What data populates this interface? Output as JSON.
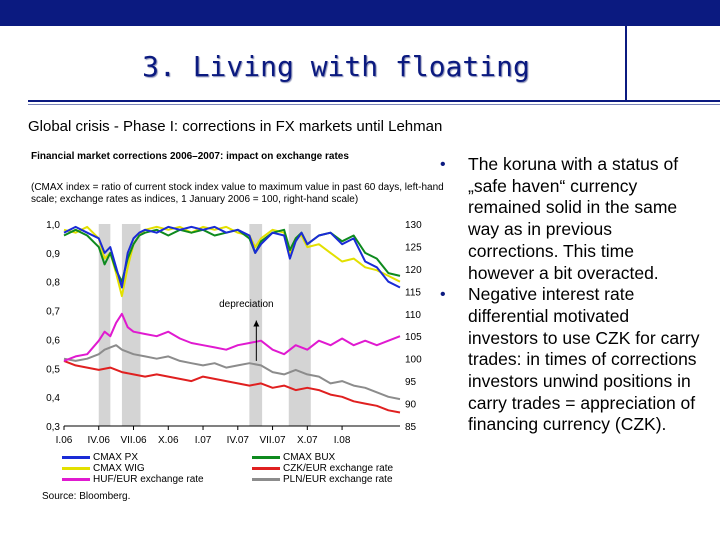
{
  "header": {
    "title": "3. Living with floating"
  },
  "subtitle": "Global crisis - Phase I: corrections in FX markets until Lehman",
  "bullets": [
    "The koruna with a status of „safe haven“ currency remained solid in the same way as in previous corrections. This time however a bit overacted.",
    "Negative interest rate differential motivated investors to use CZK for carry trades: in times of corrections investors unwind positions in carry trades = appreciation of financing currency (CZK)."
  ],
  "chart_data": {
    "type": "line",
    "title": "Financial market corrections 2006–2007: impact on exchange rates",
    "note": "(CMAX index = ratio of current stock index value to maximum value in past 60 days, left-hand scale; exchange rates as indices, 1 January 2006 = 100, right-hand scale)",
    "source": "Source: Bloomberg.",
    "annotation": "depreciation",
    "x_ticks": [
      "I.06",
      "IV.06",
      "VII.06",
      "X.06",
      "I.07",
      "IV.07",
      "VII.07",
      "X.07",
      "I.08"
    ],
    "x_range_months": [
      0,
      29
    ],
    "ylim_left": [
      0.3,
      1.0
    ],
    "yticks_left": [
      "0,3",
      "0,4",
      "0,5",
      "0,6",
      "0,7",
      "0,8",
      "0,9",
      "1,0"
    ],
    "ylim_right": [
      85,
      130
    ],
    "yticks_right": [
      "85",
      "90",
      "95",
      "100",
      "105",
      "110",
      "115",
      "120",
      "125",
      "130"
    ],
    "shaded_periods": [
      [
        3.0,
        4.0
      ],
      [
        5.0,
        6.6
      ],
      [
        16.0,
        17.1
      ],
      [
        19.4,
        21.3
      ]
    ],
    "series": [
      {
        "name": "CMAX PX",
        "axis": "left",
        "color": "#1a2bd6",
        "x": [
          0,
          1,
          2,
          3,
          3.5,
          4,
          4.5,
          5,
          5.5,
          6,
          6.5,
          7,
          8,
          9,
          10,
          11,
          12,
          13,
          14,
          15,
          16,
          16.5,
          17,
          18,
          19,
          19.5,
          20,
          20.5,
          21,
          22,
          23,
          24,
          25,
          26,
          27,
          28,
          29
        ],
        "y": [
          0.97,
          0.99,
          0.97,
          0.95,
          0.9,
          0.92,
          0.85,
          0.78,
          0.9,
          0.95,
          0.97,
          0.98,
          0.97,
          0.99,
          0.98,
          0.99,
          0.98,
          0.99,
          0.97,
          0.98,
          0.96,
          0.9,
          0.93,
          0.97,
          0.96,
          0.88,
          0.94,
          0.97,
          0.93,
          0.96,
          0.97,
          0.93,
          0.95,
          0.87,
          0.85,
          0.8,
          0.78
        ]
      },
      {
        "name": "CMAX WIG",
        "axis": "left",
        "color": "#e3e000",
        "x": [
          0,
          1,
          2,
          3,
          3.5,
          4,
          4.5,
          5,
          5.5,
          6,
          6.5,
          7,
          8,
          9,
          10,
          11,
          12,
          13,
          14,
          15,
          16,
          16.5,
          17,
          18,
          19,
          19.5,
          20,
          20.5,
          21,
          22,
          23,
          24,
          25,
          26,
          27,
          28,
          29
        ],
        "y": [
          0.98,
          0.97,
          0.99,
          0.95,
          0.88,
          0.9,
          0.83,
          0.75,
          0.85,
          0.93,
          0.96,
          0.98,
          0.99,
          0.98,
          0.99,
          0.97,
          0.99,
          0.98,
          0.99,
          0.97,
          0.96,
          0.92,
          0.95,
          0.98,
          0.97,
          0.9,
          0.95,
          0.96,
          0.92,
          0.93,
          0.9,
          0.87,
          0.88,
          0.85,
          0.84,
          0.82,
          0.8
        ]
      },
      {
        "name": "HUF/EUR exchange rate",
        "axis": "right",
        "color": "#e01ad0",
        "x": [
          0,
          1,
          2,
          3,
          3.5,
          4,
          4.5,
          5,
          5.5,
          6,
          7,
          8,
          9,
          10,
          11,
          12,
          13,
          14,
          15,
          16,
          17,
          18,
          19,
          20,
          21,
          22,
          23,
          24,
          25,
          26,
          27,
          28,
          29
        ],
        "y": [
          99.5,
          100.5,
          101,
          104,
          106,
          105,
          108,
          110,
          107,
          106,
          105.5,
          105,
          106,
          104.5,
          103.5,
          103,
          102.5,
          102,
          103,
          103.5,
          104,
          102,
          101,
          103,
          102,
          104,
          103,
          104.5,
          103,
          104,
          103,
          104,
          105
        ]
      },
      {
        "name": "CMAX BUX",
        "axis": "left",
        "color": "#0e8a1e",
        "x": [
          0,
          1,
          2,
          3,
          3.5,
          4,
          4.5,
          5,
          5.5,
          6,
          6.5,
          7,
          8,
          9,
          10,
          11,
          12,
          13,
          14,
          15,
          16,
          16.5,
          17,
          18,
          19,
          19.5,
          20,
          20.5,
          21,
          22,
          23,
          24,
          25,
          26,
          27,
          28,
          29
        ],
        "y": [
          0.96,
          0.98,
          0.96,
          0.92,
          0.86,
          0.9,
          0.84,
          0.8,
          0.88,
          0.93,
          0.96,
          0.97,
          0.98,
          0.96,
          0.98,
          0.97,
          0.98,
          0.96,
          0.97,
          0.98,
          0.95,
          0.9,
          0.94,
          0.97,
          0.98,
          0.91,
          0.95,
          0.97,
          0.93,
          0.96,
          0.97,
          0.94,
          0.96,
          0.9,
          0.88,
          0.83,
          0.82
        ]
      },
      {
        "name": "CZK/EUR exchange rate",
        "axis": "right",
        "color": "#e02020",
        "x": [
          0,
          1,
          2,
          3,
          4,
          5,
          6,
          7,
          8,
          9,
          10,
          11,
          12,
          13,
          14,
          15,
          16,
          17,
          18,
          19,
          20,
          21,
          22,
          23,
          24,
          25,
          26,
          27,
          28,
          29
        ],
        "y": [
          99.5,
          98.5,
          98,
          97.5,
          98,
          97,
          96.5,
          96,
          96.5,
          96,
          95.5,
          95,
          96,
          95.5,
          95,
          94.5,
          94,
          94.5,
          93.5,
          94,
          93,
          93.5,
          93,
          92,
          91.5,
          90.5,
          90,
          89.5,
          88.5,
          88
        ]
      },
      {
        "name": "PLN/EUR exchange rate",
        "axis": "right",
        "color": "#8c8c8c",
        "x": [
          0,
          1,
          2,
          3,
          3.5,
          4,
          4.5,
          5,
          5.5,
          6,
          7,
          8,
          9,
          10,
          11,
          12,
          13,
          14,
          15,
          16,
          17,
          18,
          19,
          20,
          21,
          22,
          23,
          24,
          25,
          26,
          27,
          28,
          29
        ],
        "y": [
          100,
          99.5,
          100,
          101,
          102,
          102.5,
          103,
          102,
          101.5,
          101,
          100.5,
          100,
          100.5,
          99.5,
          99,
          98.5,
          99,
          98,
          98.5,
          99,
          98.5,
          97,
          96.5,
          97.5,
          96.5,
          96,
          94.5,
          95,
          94,
          93.5,
          92.5,
          91.5,
          91
        ]
      }
    ]
  }
}
